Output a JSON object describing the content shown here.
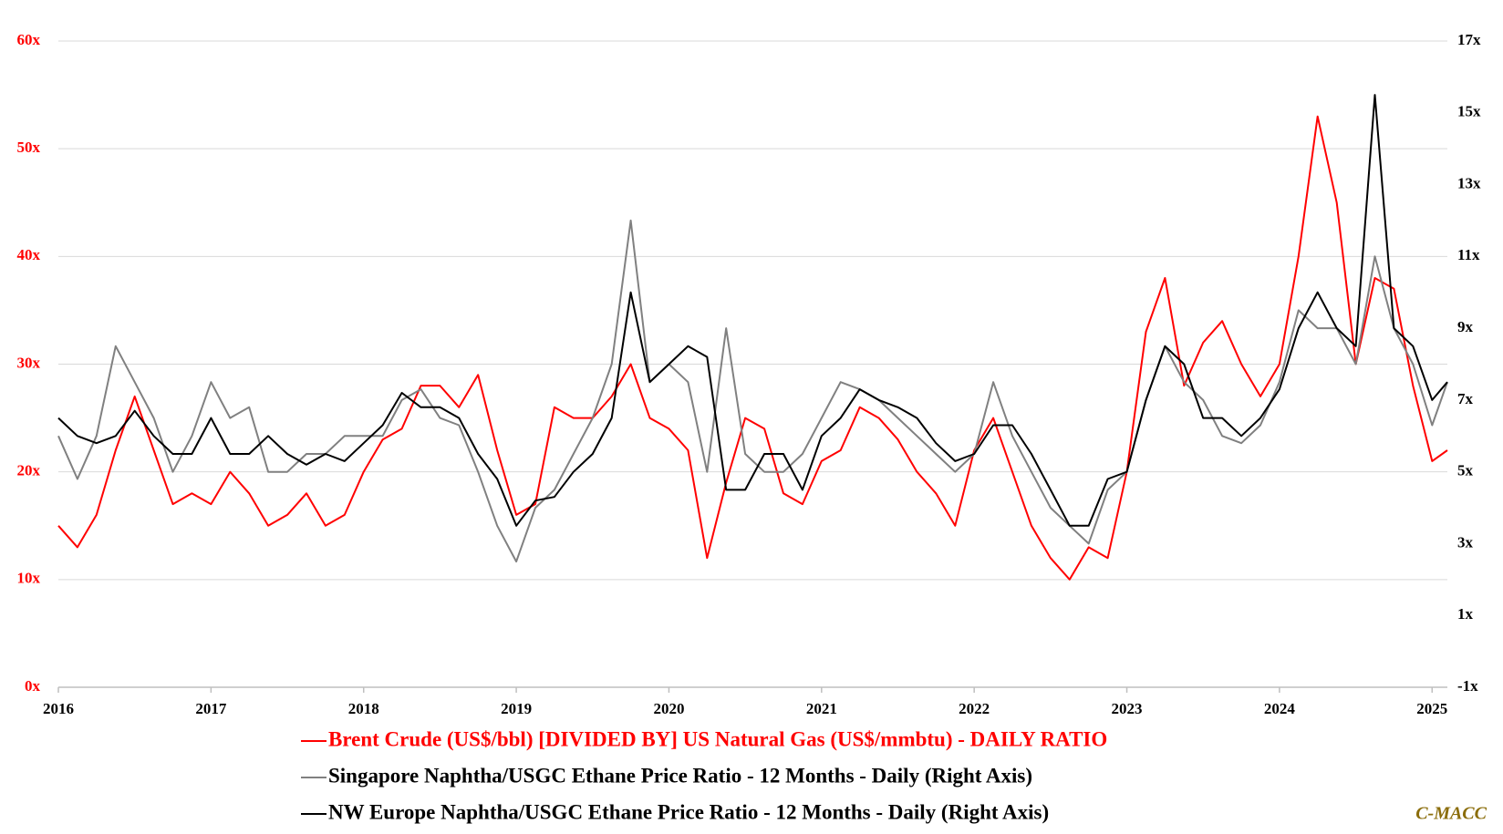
{
  "chart_data": {
    "type": "line",
    "x": [
      2016.0,
      2016.125,
      2016.25,
      2016.375,
      2016.5,
      2016.625,
      2016.75,
      2016.875,
      2017.0,
      2017.125,
      2017.25,
      2017.375,
      2017.5,
      2017.625,
      2017.75,
      2017.875,
      2018.0,
      2018.125,
      2018.25,
      2018.375,
      2018.5,
      2018.625,
      2018.75,
      2018.875,
      2019.0,
      2019.125,
      2019.25,
      2019.375,
      2019.5,
      2019.625,
      2019.75,
      2019.875,
      2020.0,
      2020.125,
      2020.25,
      2020.375,
      2020.5,
      2020.625,
      2020.75,
      2020.875,
      2021.0,
      2021.125,
      2021.25,
      2021.375,
      2021.5,
      2021.625,
      2021.75,
      2021.875,
      2022.0,
      2022.125,
      2022.25,
      2022.375,
      2022.5,
      2022.625,
      2022.75,
      2022.875,
      2023.0,
      2023.125,
      2023.25,
      2023.375,
      2023.5,
      2023.625,
      2023.75,
      2023.875,
      2024.0,
      2024.125,
      2024.25,
      2024.375,
      2024.5,
      2024.625,
      2024.75,
      2024.875,
      2025.0,
      2025.1
    ],
    "series": [
      {
        "name": "Brent Crude (US$/bbl) [DIVIDED BY] US Natural Gas (US$/mmbtu) - DAILY RATIO",
        "color": "#ff0000",
        "axis": "y",
        "values": [
          15,
          13,
          16,
          22,
          27,
          22,
          17,
          18,
          17,
          20,
          18,
          15,
          16,
          18,
          15,
          16,
          20,
          23,
          24,
          28,
          28,
          26,
          29,
          22,
          16,
          17,
          26,
          25,
          25,
          27,
          30,
          25,
          24,
          22,
          12,
          19,
          25,
          24,
          18,
          17,
          21,
          22,
          26,
          25,
          23,
          20,
          18,
          15,
          22,
          25,
          20,
          15,
          12,
          10,
          13,
          12,
          20,
          33,
          38,
          28,
          32,
          34,
          30,
          27,
          30,
          40,
          53,
          45,
          30,
          38,
          37,
          28,
          21,
          22
        ]
      },
      {
        "name": "Singapore Naphtha/USGC Ethane Price Ratio - 12 Months - Daily (Right Axis)",
        "color": "#808080",
        "axis": "y2",
        "values": [
          6,
          4.8,
          6,
          8.5,
          7.5,
          6.5,
          5,
          6,
          7.5,
          6.5,
          6.8,
          5,
          5,
          5.5,
          5.5,
          6,
          6,
          6,
          7,
          7.3,
          6.5,
          6.3,
          5,
          3.5,
          2.5,
          4,
          4.5,
          5.5,
          6.5,
          8,
          12,
          7.5,
          8,
          7.5,
          5,
          9,
          5.5,
          5,
          5,
          5.5,
          6.5,
          7.5,
          7.3,
          7,
          6.5,
          6,
          5.5,
          5,
          5.5,
          7.5,
          6,
          5,
          4,
          3.5,
          3,
          4.5,
          5,
          7,
          8.5,
          7.5,
          7,
          6,
          5.8,
          6.3,
          7.5,
          9.5,
          9,
          9,
          8,
          11,
          9,
          8,
          6.3,
          7.5
        ]
      },
      {
        "name": "NW Europe Naphtha/USGC Ethane Price Ratio - 12 Months - Daily (Right Axis)",
        "color": "#000000",
        "axis": "y2",
        "values": [
          6.5,
          6,
          5.8,
          6,
          6.7,
          6,
          5.5,
          5.5,
          6.5,
          5.5,
          5.5,
          6,
          5.5,
          5.2,
          5.5,
          5.3,
          5.8,
          6.3,
          7.2,
          6.8,
          6.8,
          6.5,
          5.5,
          4.8,
          3.5,
          4.2,
          4.3,
          5,
          5.5,
          6.5,
          10,
          7.5,
          8,
          8.5,
          8.2,
          4.5,
          4.5,
          5.5,
          5.5,
          4.5,
          6,
          6.5,
          7.3,
          7,
          6.8,
          6.5,
          5.8,
          5.3,
          5.5,
          6.3,
          6.3,
          5.5,
          4.5,
          3.5,
          3.5,
          4.8,
          5,
          7,
          8.5,
          8,
          6.5,
          6.5,
          6,
          6.5,
          7.3,
          9,
          10,
          9,
          8.5,
          15.5,
          9,
          8.5,
          7,
          7.5
        ]
      }
    ],
    "xlim": [
      2016,
      2025.1
    ],
    "xticks": [
      2016,
      2017,
      2018,
      2019,
      2020,
      2021,
      2022,
      2023,
      2024,
      2025
    ],
    "ylim": [
      0,
      60
    ],
    "yticks": [
      {
        "value": 0,
        "label": "0x"
      },
      {
        "value": 10,
        "label": "10x"
      },
      {
        "value": 20,
        "label": "20x"
      },
      {
        "value": 30,
        "label": "30x"
      },
      {
        "value": 40,
        "label": "40x"
      },
      {
        "value": 50,
        "label": "50x"
      },
      {
        "value": 60,
        "label": "60x"
      }
    ],
    "y2lim": [
      -1,
      17
    ],
    "y2ticks": [
      {
        "value": -1,
        "label": "-1x"
      },
      {
        "value": 1,
        "label": "1x"
      },
      {
        "value": 3,
        "label": "3x"
      },
      {
        "value": 5,
        "label": "5x"
      },
      {
        "value": 7,
        "label": "7x"
      },
      {
        "value": 9,
        "label": "9x"
      },
      {
        "value": 11,
        "label": "11x"
      },
      {
        "value": 13,
        "label": "13x"
      },
      {
        "value": 15,
        "label": "15x"
      },
      {
        "value": 17,
        "label": "17x"
      }
    ],
    "y_tick_color": "#ff0000",
    "y2_tick_color": "#000000",
    "grid": true,
    "source": "C-MACC"
  }
}
